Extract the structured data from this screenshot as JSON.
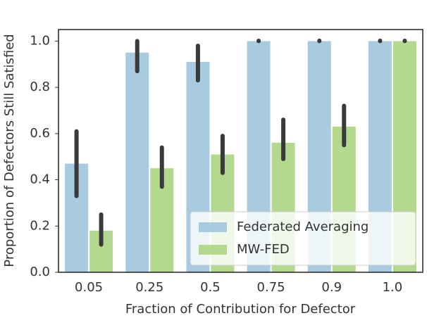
{
  "chart_data": {
    "type": "bar",
    "x_label": "Fraction of Contribution for Defector",
    "y_label": "Proportion of Defectors Still Satisfied",
    "categories": [
      "0.05",
      "0.25",
      "0.5",
      "0.75",
      "0.9",
      "1.0"
    ],
    "series": [
      {
        "name": "Federated Averaging",
        "color": "#a9cbe0",
        "values": [
          0.47,
          0.95,
          0.91,
          1.0,
          1.0,
          1.0
        ],
        "err_low": [
          0.33,
          0.87,
          0.83,
          1.0,
          1.0,
          1.0
        ],
        "err_high": [
          0.61,
          1.0,
          0.98,
          1.0,
          1.0,
          1.0
        ]
      },
      {
        "name": "MW-FED",
        "color": "#b3d98f",
        "values": [
          0.18,
          0.45,
          0.51,
          0.56,
          0.63,
          1.0
        ],
        "err_low": [
          0.12,
          0.37,
          0.43,
          0.49,
          0.55,
          1.0
        ],
        "err_high": [
          0.25,
          0.54,
          0.59,
          0.66,
          0.72,
          1.0
        ]
      }
    ],
    "ylim": [
      0,
      1.05
    ],
    "yticks": [
      {
        "value": 0,
        "label": "0.0"
      },
      0.2,
      0.4,
      0.6,
      0.8,
      {
        "value": 1,
        "label": "1.0"
      }
    ],
    "legend": "lower right",
    "error_color": "#3a3a3a"
  }
}
